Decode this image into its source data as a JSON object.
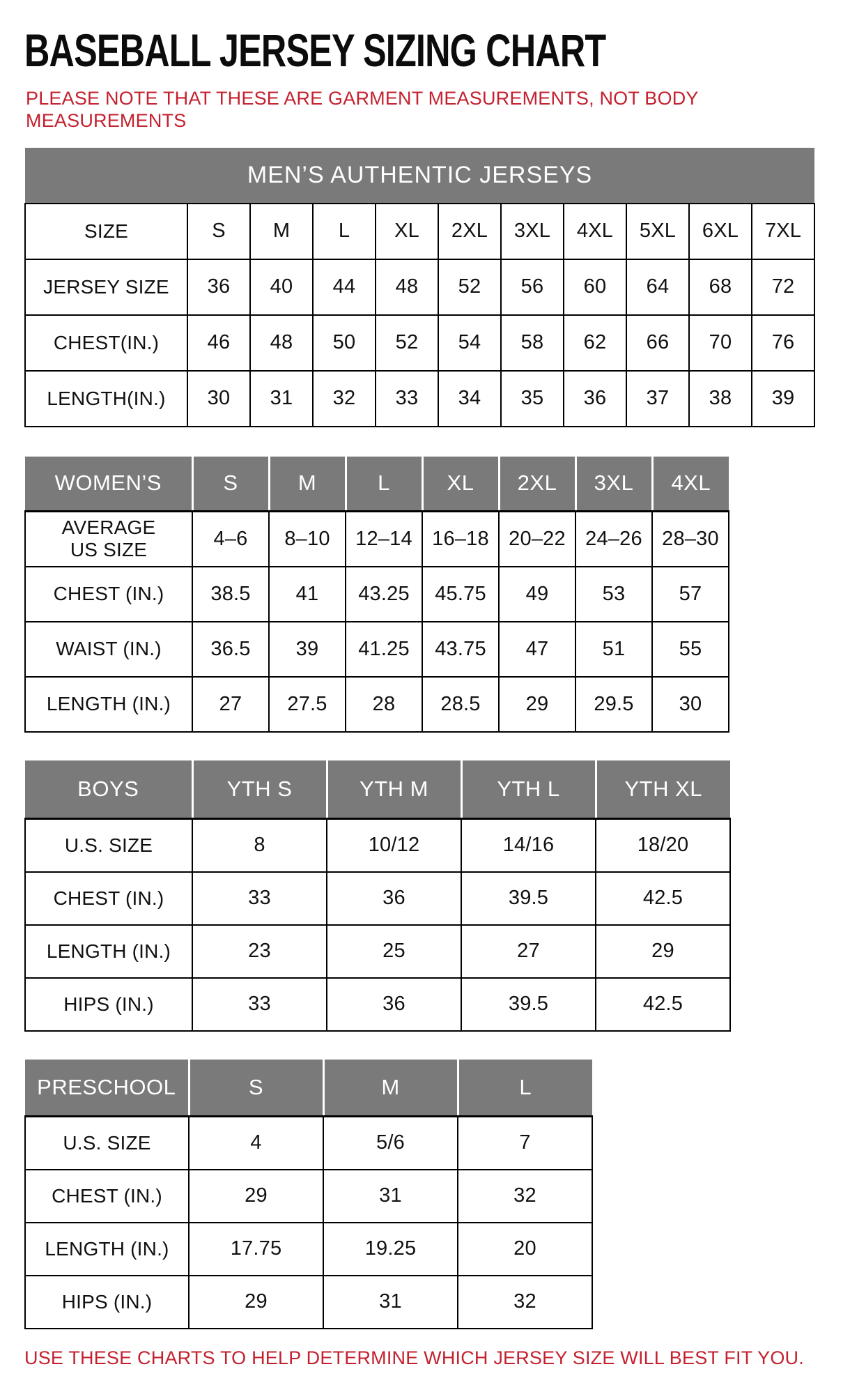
{
  "header": {
    "title": "BASEBALL JERSEY SIZING CHART",
    "note": "PLEASE NOTE THAT THESE ARE GARMENT MEASUREMENTS, NOT BODY\nMEASUREMENTS"
  },
  "footer": {
    "text": "USE THESE CHARTS TO HELP DETERMINE WHICH JERSEY SIZE WILL BEST FIT YOU."
  },
  "colors": {
    "header_gray": "#7a7a7a",
    "accent_red": "#c4212f",
    "table_border": "#000000",
    "text": "#111111"
  },
  "chart_data": [
    {
      "id": "mens",
      "type": "table",
      "header_style": "merged",
      "title": "MEN’S AUTHENTIC JERSEYS",
      "rows": [
        {
          "label": "SIZE",
          "values": [
            "S",
            "M",
            "L",
            "XL",
            "2XL",
            "3XL",
            "4XL",
            "5XL",
            "6XL",
            "7XL"
          ]
        },
        {
          "label": "JERSEY SIZE",
          "values": [
            "36",
            "40",
            "44",
            "48",
            "52",
            "56",
            "60",
            "64",
            "68",
            "72"
          ]
        },
        {
          "label": "CHEST(IN.)",
          "values": [
            "46",
            "48",
            "50",
            "52",
            "54",
            "58",
            "62",
            "66",
            "70",
            "76"
          ]
        },
        {
          "label": "LENGTH(IN.)",
          "values": [
            "30",
            "31",
            "32",
            "33",
            "34",
            "35",
            "36",
            "37",
            "38",
            "39"
          ]
        }
      ]
    },
    {
      "id": "womens",
      "type": "table",
      "header_style": "cells",
      "title": "WOMEN’S",
      "columns": [
        "S",
        "M",
        "L",
        "XL",
        "2XL",
        "3XL",
        "4XL"
      ],
      "rows": [
        {
          "label": "AVERAGE\nUS SIZE",
          "values": [
            "4–6",
            "8–10",
            "12–14",
            "16–18",
            "20–22",
            "24–26",
            "28–30"
          ]
        },
        {
          "label": "CHEST (IN.)",
          "values": [
            "38.5",
            "41",
            "43.25",
            "45.75",
            "49",
            "53",
            "57"
          ]
        },
        {
          "label": "WAIST (IN.)",
          "values": [
            "36.5",
            "39",
            "41.25",
            "43.75",
            "47",
            "51",
            "55"
          ]
        },
        {
          "label": "LENGTH (IN.)",
          "values": [
            "27",
            "27.5",
            "28",
            "28.5",
            "29",
            "29.5",
            "30"
          ]
        }
      ]
    },
    {
      "id": "boys",
      "type": "table",
      "header_style": "cells",
      "title": "BOYS",
      "columns": [
        "YTH S",
        "YTH M",
        "YTH L",
        "YTH XL"
      ],
      "rows": [
        {
          "label": "U.S. SIZE",
          "values": [
            "8",
            "10/12",
            "14/16",
            "18/20"
          ]
        },
        {
          "label": "CHEST (IN.)",
          "values": [
            "33",
            "36",
            "39.5",
            "42.5"
          ]
        },
        {
          "label": "LENGTH (IN.)",
          "values": [
            "23",
            "25",
            "27",
            "29"
          ]
        },
        {
          "label": "HIPS (IN.)",
          "values": [
            "33",
            "36",
            "39.5",
            "42.5"
          ]
        }
      ]
    },
    {
      "id": "preschool",
      "type": "table",
      "header_style": "cells",
      "title": "PRESCHOOL",
      "columns": [
        "S",
        "M",
        "L"
      ],
      "rows": [
        {
          "label": "U.S. SIZE",
          "values": [
            "4",
            "5/6",
            "7"
          ]
        },
        {
          "label": "CHEST (IN.)",
          "values": [
            "29",
            "31",
            "32"
          ]
        },
        {
          "label": "LENGTH (IN.)",
          "values": [
            "17.75",
            "19.25",
            "20"
          ]
        },
        {
          "label": "HIPS (IN.)",
          "values": [
            "29",
            "31",
            "32"
          ]
        }
      ]
    }
  ]
}
